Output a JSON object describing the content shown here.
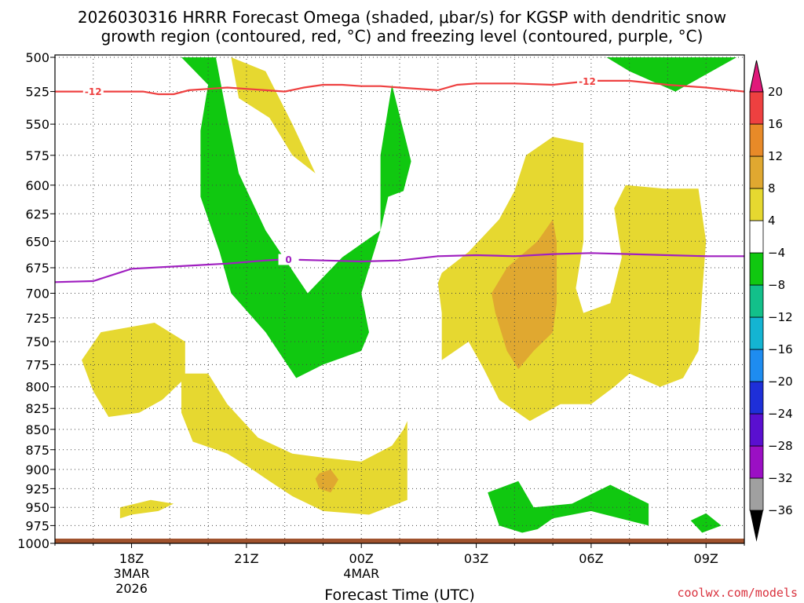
{
  "header": {
    "title_line1": "2026030316 HRRR Forecast Omega (shaded, μbar/s) for KGSP with dendritic snow",
    "title_line2": "growth region (contoured, red, °C) and freezing level (contoured, purple, °C)"
  },
  "credit": "coolwx.com/models",
  "chart_data": {
    "type": "heatmap",
    "title": "2026030316 HRRR Forecast Omega (shaded, μbar/s) for KGSP with dendritic snow growth region (contoured, red, °C) and freezing level (contoured, purple, °C)",
    "xlabel": "Forecast Time (UTC)",
    "ylabel": "",
    "x_range_hours": [
      -2.0,
      16.0
    ],
    "x_ticks": [
      {
        "hour": 0,
        "l1": "18Z",
        "l2": "3MAR",
        "l3": "2026"
      },
      {
        "hour": 3,
        "l1": "21Z",
        "l2": "",
        "l3": ""
      },
      {
        "hour": 6,
        "l1": "00Z",
        "l2": "4MAR",
        "l3": ""
      },
      {
        "hour": 9,
        "l1": "03Z",
        "l2": "",
        "l3": ""
      },
      {
        "hour": 12,
        "l1": "06Z",
        "l2": "",
        "l3": ""
      },
      {
        "hour": 15,
        "l1": "09Z",
        "l2": "",
        "l3": ""
      }
    ],
    "y_ticks_hpa": [
      500,
      525,
      550,
      575,
      600,
      625,
      650,
      675,
      700,
      725,
      750,
      775,
      800,
      825,
      850,
      875,
      900,
      925,
      950,
      975,
      1000
    ],
    "y_range_hpa": [
      500,
      1000
    ],
    "y_scale": "log-pressure",
    "grid": true,
    "colorbar": {
      "levels": [
        -36,
        -32,
        -28,
        -24,
        -20,
        -16,
        -12,
        -8,
        -4,
        4,
        8,
        12,
        16,
        20
      ],
      "colors": [
        "#a0a0a0",
        "#9b0fc4",
        "#5a0fd0",
        "#1e2fd8",
        "#1e8cf0",
        "#14b4d2",
        "#12c08a",
        "#10c810",
        "#ffffff",
        "#e6d830",
        "#e0a830",
        "#e88a28",
        "#ee4040",
        "#e0187a"
      ]
    },
    "shaded_regions": [
      {
        "color": "#10c810",
        "range": "-8 to -4",
        "points": [
          [
            1.3,
            500
          ],
          [
            2.0,
            520
          ],
          [
            1.8,
            555
          ],
          [
            1.8,
            610
          ],
          [
            2.3,
            660
          ],
          [
            2.6,
            700
          ],
          [
            3.5,
            740
          ],
          [
            4.3,
            790
          ],
          [
            5.0,
            775
          ],
          [
            6.0,
            760
          ],
          [
            6.2,
            740
          ],
          [
            6.0,
            700
          ],
          [
            6.5,
            640
          ],
          [
            6.5,
            575
          ],
          [
            6.8,
            520
          ],
          [
            7.3,
            580
          ],
          [
            7.1,
            605
          ],
          [
            6.7,
            610
          ],
          [
            6.5,
            640
          ],
          [
            5.5,
            665
          ],
          [
            4.6,
            700
          ],
          [
            3.5,
            640
          ],
          [
            2.8,
            590
          ],
          [
            2.5,
            545
          ],
          [
            2.2,
            500
          ]
        ]
      },
      {
        "color": "#10c810",
        "range": "-8 to -4",
        "points": [
          [
            14.2,
            500
          ],
          [
            14.7,
            500
          ],
          [
            15.8,
            500
          ],
          [
            14.2,
            525
          ],
          [
            13.0,
            510
          ],
          [
            12.4,
            500
          ]
        ]
      },
      {
        "color": "#10c810",
        "range": "-8 to -4",
        "points": [
          [
            9.3,
            930
          ],
          [
            9.6,
            975
          ],
          [
            10.2,
            985
          ],
          [
            10.6,
            980
          ],
          [
            11.0,
            965
          ],
          [
            12.0,
            955
          ],
          [
            13.5,
            975
          ],
          [
            13.5,
            945
          ],
          [
            12.5,
            920
          ],
          [
            11.5,
            945
          ],
          [
            10.5,
            950
          ],
          [
            10.1,
            915
          ]
        ]
      },
      {
        "color": "#10c810",
        "range": "-8 to -4",
        "points": [
          [
            14.6,
            968
          ],
          [
            15.0,
            958
          ],
          [
            15.4,
            975
          ],
          [
            14.9,
            985
          ]
        ]
      },
      {
        "color": "#e6d830",
        "range": "4 to 8",
        "points": [
          [
            2.6,
            500
          ],
          [
            3.5,
            510
          ],
          [
            4.2,
            550
          ],
          [
            4.8,
            590
          ],
          [
            4.2,
            575
          ],
          [
            3.6,
            545
          ],
          [
            2.8,
            530
          ]
        ]
      },
      {
        "color": "#e6d830",
        "range": "4 to 8",
        "points": [
          [
            0.6,
            730
          ],
          [
            1.0,
            740
          ],
          [
            1.4,
            750
          ],
          [
            1.4,
            790
          ],
          [
            0.8,
            815
          ],
          [
            0.2,
            830
          ],
          [
            -0.6,
            835
          ],
          [
            -1.0,
            805
          ],
          [
            -1.3,
            770
          ],
          [
            -0.8,
            740
          ]
        ]
      },
      {
        "color": "#e6d830",
        "range": "4 to 8",
        "points": [
          [
            1.3,
            785
          ],
          [
            2.0,
            785
          ],
          [
            2.5,
            820
          ],
          [
            3.3,
            860
          ],
          [
            4.2,
            880
          ],
          [
            5.0,
            885
          ],
          [
            6.0,
            890
          ],
          [
            6.8,
            870
          ],
          [
            7.1,
            850
          ],
          [
            7.2,
            840
          ],
          [
            7.2,
            940
          ],
          [
            6.2,
            960
          ],
          [
            5.0,
            955
          ],
          [
            4.2,
            935
          ],
          [
            3.6,
            915
          ],
          [
            3.0,
            895
          ],
          [
            2.5,
            880
          ],
          [
            1.6,
            865
          ],
          [
            1.3,
            830
          ]
        ]
      },
      {
        "color": "#e6d830",
        "range": "4 to 8",
        "points": [
          [
            -0.3,
            950
          ],
          [
            0.5,
            940
          ],
          [
            1.1,
            945
          ],
          [
            0.7,
            955
          ],
          [
            0.0,
            960
          ],
          [
            -0.3,
            965
          ]
        ]
      },
      {
        "color": "#e6d830",
        "range": "4 to 8",
        "points": [
          [
            11.0,
            560
          ],
          [
            11.8,
            565
          ],
          [
            11.8,
            610
          ],
          [
            11.8,
            650
          ],
          [
            11.6,
            695
          ],
          [
            11.8,
            720
          ],
          [
            12.5,
            710
          ],
          [
            12.8,
            665
          ],
          [
            12.6,
            620
          ],
          [
            12.9,
            600
          ],
          [
            13.9,
            603
          ],
          [
            14.8,
            603
          ],
          [
            15.0,
            650
          ],
          [
            14.9,
            700
          ],
          [
            14.8,
            760
          ],
          [
            14.4,
            790
          ],
          [
            13.8,
            800
          ],
          [
            13.0,
            785
          ],
          [
            12.6,
            800
          ],
          [
            12.0,
            820
          ],
          [
            11.2,
            820
          ],
          [
            10.4,
            840
          ],
          [
            9.6,
            815
          ],
          [
            9.2,
            780
          ],
          [
            8.8,
            750
          ],
          [
            8.1,
            770
          ],
          [
            8.1,
            720
          ],
          [
            8.0,
            690
          ],
          [
            8.1,
            680
          ],
          [
            8.8,
            660
          ],
          [
            9.6,
            630
          ],
          [
            10.0,
            605
          ],
          [
            10.3,
            575
          ]
        ]
      },
      {
        "color": "#e0a830",
        "range": "8 to 12",
        "points": [
          [
            10.6,
            650
          ],
          [
            11.0,
            630
          ],
          [
            11.1,
            650
          ],
          [
            11.1,
            680
          ],
          [
            11.1,
            710
          ],
          [
            11.0,
            740
          ],
          [
            10.5,
            760
          ],
          [
            10.1,
            780
          ],
          [
            9.8,
            760
          ],
          [
            9.5,
            720
          ],
          [
            9.4,
            700
          ],
          [
            9.8,
            675
          ]
        ]
      },
      {
        "color": "#e0a830",
        "range": "8 to 12",
        "points": [
          [
            4.9,
            905
          ],
          [
            5.2,
            900
          ],
          [
            5.4,
            913
          ],
          [
            5.2,
            930
          ],
          [
            4.9,
            925
          ],
          [
            4.8,
            912
          ]
        ]
      }
    ],
    "contours": [
      {
        "label": "-12",
        "color": "#ee4040",
        "points": [
          [
            -2.0,
            525
          ],
          [
            0.3,
            525
          ],
          [
            0.7,
            527
          ],
          [
            1.1,
            527
          ],
          [
            1.5,
            524
          ],
          [
            2.0,
            523
          ],
          [
            2.5,
            522
          ],
          [
            3.0,
            523
          ],
          [
            3.5,
            524
          ],
          [
            4.0,
            525
          ],
          [
            4.5,
            522
          ],
          [
            5.0,
            520
          ],
          [
            5.5,
            520
          ],
          [
            6.0,
            521
          ],
          [
            6.5,
            521
          ],
          [
            7.0,
            522
          ],
          [
            8.0,
            524
          ],
          [
            8.5,
            520
          ],
          [
            9.0,
            519
          ],
          [
            10.0,
            519
          ],
          [
            11.0,
            520
          ],
          [
            12.0,
            517
          ],
          [
            13.0,
            517
          ],
          [
            14.0,
            520
          ],
          [
            15.0,
            522
          ],
          [
            16.0,
            525
          ]
        ],
        "labels_at": [
          -1.0,
          11.9
        ]
      },
      {
        "label": "0",
        "color": "#a020c0",
        "points": [
          [
            -2.0,
            689
          ],
          [
            -1.0,
            688
          ],
          [
            0.0,
            676
          ],
          [
            1.5,
            673
          ],
          [
            2.5,
            671
          ],
          [
            3.5,
            668
          ],
          [
            4.0,
            667
          ],
          [
            5.0,
            668
          ],
          [
            6.0,
            669
          ],
          [
            7.0,
            668
          ],
          [
            8.0,
            664
          ],
          [
            9.0,
            663
          ],
          [
            10.0,
            664
          ],
          [
            11.0,
            662
          ],
          [
            12.0,
            661
          ],
          [
            13.0,
            662
          ],
          [
            14.0,
            663
          ],
          [
            15.0,
            664
          ],
          [
            16.0,
            664
          ]
        ],
        "labels_at": [
          4.1
        ]
      }
    ],
    "terrain_color": "#a0522d"
  }
}
